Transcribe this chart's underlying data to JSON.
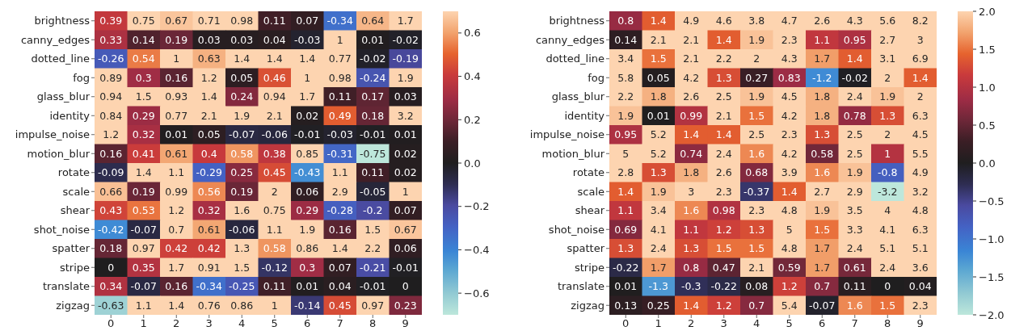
{
  "chart_data": [
    {
      "type": "heatmap",
      "categories": [
        "0",
        "1",
        "2",
        "3",
        "4",
        "5",
        "6",
        "7",
        "8",
        "9"
      ],
      "y_categories": [
        "brightness",
        "canny_edges",
        "dotted_line",
        "fog",
        "glass_blur",
        "identity",
        "impulse_noise",
        "motion_blur",
        "rotate",
        "scale",
        "shear",
        "shot_noise",
        "spatter",
        "stripe",
        "translate",
        "zigzag"
      ],
      "cells": [
        [
          0.39,
          0.75,
          0.67,
          0.71,
          0.98,
          0.11,
          0.07,
          -0.34,
          0.64,
          1.7
        ],
        [
          0.33,
          0.14,
          0.19,
          0.03,
          0.03,
          0.04,
          -0.03,
          1,
          0.01,
          -0.02
        ],
        [
          -0.26,
          0.54,
          1,
          0.63,
          1.4,
          1.4,
          1.4,
          0.77,
          -0.02,
          -0.19
        ],
        [
          0.89,
          0.3,
          0.16,
          1.2,
          0.05,
          0.46,
          1,
          0.98,
          -0.24,
          1.9
        ],
        [
          0.94,
          1.5,
          0.93,
          1.4,
          0.24,
          0.94,
          1.7,
          0.11,
          0.17,
          0.03
        ],
        [
          0.84,
          0.29,
          0.77,
          2.1,
          1.9,
          2.1,
          0.02,
          0.49,
          0.18,
          3.2
        ],
        [
          1.2,
          0.32,
          0.01,
          0.05,
          -0.07,
          -0.06,
          -0.01,
          -0.03,
          -0.01,
          0.01
        ],
        [
          0.16,
          0.41,
          0.61,
          0.4,
          0.58,
          0.38,
          0.85,
          -0.31,
          -0.75,
          0.02
        ],
        [
          -0.09,
          1.4,
          1.1,
          -0.29,
          0.25,
          0.45,
          -0.43,
          1.1,
          0.11,
          0.02
        ],
        [
          0.66,
          0.19,
          0.99,
          0.56,
          0.19,
          2,
          0.06,
          2.9,
          -0.05,
          1
        ],
        [
          0.43,
          0.53,
          1.2,
          0.32,
          1.6,
          0.75,
          0.29,
          -0.28,
          -0.2,
          0.07
        ],
        [
          -0.42,
          -0.07,
          0.7,
          0.61,
          -0.06,
          1.1,
          1.9,
          0.16,
          1.5,
          0.67
        ],
        [
          0.18,
          0.97,
          0.42,
          0.42,
          1.3,
          0.58,
          0.86,
          1.4,
          2.2,
          0.06
        ],
        [
          0,
          0.35,
          1.7,
          0.91,
          1.5,
          -0.12,
          0.3,
          0.07,
          -0.21,
          -0.01
        ],
        [
          0.34,
          -0.07,
          0.16,
          -0.34,
          -0.25,
          0.11,
          0.01,
          0.04,
          -0.01,
          0
        ],
        [
          -0.63,
          1.1,
          1.4,
          0.76,
          0.86,
          1,
          -0.14,
          0.45,
          0.97,
          0.23
        ]
      ],
      "clim": [
        -0.7,
        0.7
      ],
      "cticks": [
        {
          "value": -0.6,
          "label": "−0.6"
        },
        {
          "value": -0.4,
          "label": "−0.4"
        },
        {
          "value": -0.2,
          "label": "−0.2"
        },
        {
          "value": 0,
          "label": "0.0"
        },
        0.2,
        0.4,
        0.6
      ],
      "data_labels": true
    },
    {
      "type": "heatmap",
      "categories": [
        "0",
        "1",
        "2",
        "3",
        "4",
        "5",
        "6",
        "7",
        "8",
        "9"
      ],
      "y_categories": [
        "brightness",
        "canny_edges",
        "dotted_line",
        "fog",
        "glass_blur",
        "identity",
        "impulse_noise",
        "motion_blur",
        "rotate",
        "scale",
        "shear",
        "shot_noise",
        "spatter",
        "stripe",
        "translate",
        "zigzag"
      ],
      "cells": [
        [
          0.8,
          1.4,
          4.9,
          4.6,
          3.8,
          4.7,
          2.6,
          4.3,
          5.6,
          8.2
        ],
        [
          0.14,
          2.1,
          2.1,
          1.4,
          1.9,
          2.3,
          1.1,
          0.95,
          2.7,
          3
        ],
        [
          3.4,
          1.5,
          2.1,
          2.2,
          2,
          4.3,
          1.7,
          1.4,
          3.1,
          6.9
        ],
        [
          5.8,
          0.05,
          4.2,
          1.3,
          0.27,
          0.83,
          -1.2,
          -0.02,
          2,
          1.4
        ],
        [
          2.2,
          1.8,
          2.6,
          2.5,
          1.9,
          4.5,
          1.8,
          2.4,
          1.9,
          2
        ],
        [
          1.9,
          0.01,
          0.99,
          2.1,
          1.5,
          4.2,
          1.8,
          0.78,
          1.3,
          6.3
        ],
        [
          0.95,
          5.2,
          1.4,
          1.4,
          2.5,
          2.3,
          1.3,
          2.5,
          2,
          4.5
        ],
        [
          5,
          5.2,
          0.74,
          2.4,
          1.6,
          4.2,
          0.58,
          2.5,
          1,
          5.5
        ],
        [
          2.8,
          1.3,
          1.8,
          2.6,
          0.68,
          3.9,
          1.6,
          1.9,
          -0.8,
          4.9
        ],
        [
          1.4,
          1.9,
          3,
          2.3,
          -0.37,
          1.4,
          2.7,
          2.9,
          -3.2,
          3.2
        ],
        [
          1.1,
          3.4,
          1.6,
          0.98,
          2.3,
          4.8,
          1.9,
          3.5,
          4,
          4.8
        ],
        [
          0.69,
          4.1,
          1.1,
          1.2,
          1.3,
          5,
          1.5,
          3.3,
          4.1,
          6.3
        ],
        [
          1.3,
          2.4,
          1.3,
          1.5,
          1.5,
          4.8,
          1.7,
          2.4,
          5.1,
          5.1
        ],
        [
          -0.22,
          1.7,
          0.8,
          0.47,
          2.1,
          0.59,
          1.7,
          0.61,
          2.4,
          3.6
        ],
        [
          0.01,
          -1.3,
          -0.3,
          -0.22,
          0.08,
          1.2,
          0.7,
          0.11,
          0,
          0.04
        ],
        [
          0.13,
          0.25,
          1.4,
          1.2,
          0.7,
          5.4,
          -0.07,
          1.6,
          1.5,
          2.3
        ]
      ],
      "clim": [
        -2,
        2
      ],
      "cticks": [
        {
          "value": -2,
          "label": "−2.0"
        },
        {
          "value": -1.5,
          "label": "−1.5"
        },
        {
          "value": -1,
          "label": "−1.0"
        },
        {
          "value": -0.5,
          "label": "−0.5"
        },
        {
          "value": 0,
          "label": "0.0"
        },
        0.5,
        {
          "value": 1,
          "label": "1.0"
        },
        1.5,
        {
          "value": 2,
          "label": "2.0"
        }
      ],
      "data_labels": true
    }
  ]
}
